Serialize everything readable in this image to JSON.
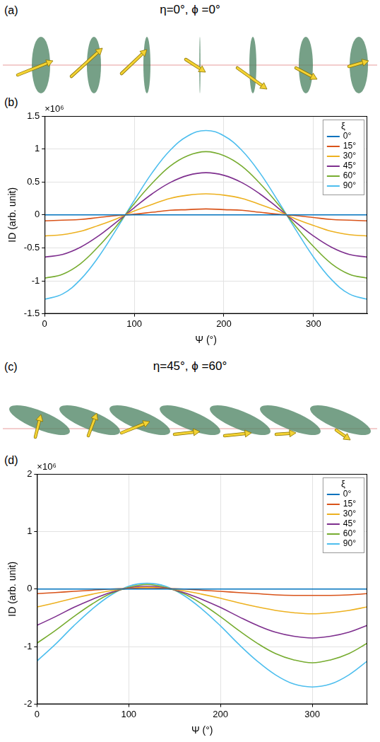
{
  "illustrations": [
    {
      "panel": "(a)",
      "title": "η=0°, ϕ =0°"
    },
    {
      "panel": "(c)",
      "title": "η=45°, ϕ =60°"
    }
  ],
  "chart_data": [
    {
      "type": "line",
      "panel": "(b)",
      "xlabel": "Ψ (°)",
      "ylabel": "ID (arb. unit)",
      "annotation": "×10⁶",
      "legend_title": "ξ",
      "legend": "upper right",
      "grid": true,
      "xlim": [
        0,
        360
      ],
      "xticks": [
        0,
        100,
        200,
        300
      ],
      "ylim": [
        -1.5,
        1.5
      ],
      "yticks": [
        -1.5,
        -1,
        -0.5,
        0,
        0.5,
        1,
        1.5
      ],
      "x": [
        0,
        20,
        40,
        60,
        80,
        100,
        120,
        140,
        160,
        180,
        200,
        220,
        240,
        260,
        280,
        300,
        320,
        340,
        360
      ],
      "series": [
        {
          "name": "0°",
          "color": "#0072BD",
          "values": [
            0,
            0,
            0,
            0,
            0,
            0,
            0,
            0,
            0,
            0,
            0,
            0,
            0,
            0,
            0,
            0,
            0,
            0,
            0
          ]
        },
        {
          "name": "15°",
          "color": "#D95319",
          "values": [
            -0.09,
            -0.08,
            -0.07,
            -0.04,
            -0.01,
            0.01,
            0.04,
            0.07,
            0.08,
            0.09,
            0.08,
            0.07,
            0.04,
            0.01,
            -0.01,
            -0.04,
            -0.07,
            -0.08,
            -0.09
          ]
        },
        {
          "name": "30°",
          "color": "#EDB120",
          "values": [
            -0.32,
            -0.3,
            -0.25,
            -0.16,
            -0.06,
            0.06,
            0.16,
            0.25,
            0.3,
            0.32,
            0.3,
            0.25,
            0.16,
            0.06,
            -0.06,
            -0.16,
            -0.25,
            -0.3,
            -0.32
          ]
        },
        {
          "name": "45°",
          "color": "#7E2F8E",
          "values": [
            -0.64,
            -0.6,
            -0.49,
            -0.32,
            -0.11,
            0.11,
            0.32,
            0.49,
            0.6,
            0.64,
            0.6,
            0.49,
            0.32,
            0.11,
            -0.11,
            -0.32,
            -0.49,
            -0.6,
            -0.64
          ]
        },
        {
          "name": "60°",
          "color": "#77AC30",
          "values": [
            -0.96,
            -0.9,
            -0.74,
            -0.48,
            -0.17,
            0.17,
            0.48,
            0.74,
            0.9,
            0.96,
            0.9,
            0.74,
            0.48,
            0.17,
            -0.17,
            -0.48,
            -0.74,
            -0.9,
            -0.96
          ]
        },
        {
          "name": "90°",
          "color": "#4DBEEE",
          "values": [
            -1.28,
            -1.2,
            -0.98,
            -0.64,
            -0.22,
            0.22,
            0.64,
            0.98,
            1.2,
            1.28,
            1.2,
            0.98,
            0.64,
            0.22,
            -0.22,
            -0.64,
            -0.98,
            -1.2,
            -1.28
          ]
        }
      ]
    },
    {
      "type": "line",
      "panel": "(d)",
      "xlabel": "Ψ (°)",
      "ylabel": "ID (arb. unit)",
      "annotation": "×10⁶",
      "legend_title": "ξ",
      "legend": "upper right",
      "grid": true,
      "xlim": [
        0,
        360
      ],
      "xticks": [
        0,
        100,
        200,
        300
      ],
      "ylim": [
        -2,
        2
      ],
      "yticks": [
        -2,
        -1,
        0,
        1,
        2
      ],
      "x": [
        0,
        20,
        40,
        60,
        80,
        100,
        120,
        140,
        160,
        180,
        200,
        220,
        240,
        260,
        280,
        300,
        320,
        340,
        360
      ],
      "series": [
        {
          "name": "0°",
          "color": "#0072BD",
          "values": [
            0,
            0,
            0,
            0,
            0,
            0,
            0,
            0,
            0,
            0,
            0,
            0,
            0,
            0,
            0,
            0,
            0,
            0,
            0
          ]
        },
        {
          "name": "15°",
          "color": "#D95319",
          "values": [
            -0.08,
            -0.06,
            -0.04,
            -0.02,
            0.0,
            0.01,
            0.01,
            0.01,
            0.0,
            -0.02,
            -0.04,
            -0.06,
            -0.08,
            -0.1,
            -0.11,
            -0.11,
            -0.11,
            -0.1,
            -0.08
          ]
        },
        {
          "name": "30°",
          "color": "#EDB120",
          "values": [
            -0.31,
            -0.24,
            -0.16,
            -0.09,
            -0.03,
            0.01,
            0.03,
            0.01,
            -0.03,
            -0.09,
            -0.16,
            -0.24,
            -0.31,
            -0.37,
            -0.41,
            -0.43,
            -0.41,
            -0.37,
            -0.31
          ]
        },
        {
          "name": "45°",
          "color": "#7E2F8E",
          "values": [
            -0.63,
            -0.48,
            -0.32,
            -0.18,
            -0.06,
            0.02,
            0.05,
            0.02,
            -0.06,
            -0.18,
            -0.32,
            -0.48,
            -0.63,
            -0.75,
            -0.82,
            -0.85,
            -0.82,
            -0.75,
            -0.63
          ]
        },
        {
          "name": "60°",
          "color": "#77AC30",
          "values": [
            -0.94,
            -0.72,
            -0.48,
            -0.26,
            -0.08,
            0.03,
            0.08,
            0.03,
            -0.08,
            -0.26,
            -0.48,
            -0.72,
            -0.94,
            -1.12,
            -1.23,
            -1.28,
            -1.23,
            -1.12,
            -0.94
          ]
        },
        {
          "name": "90°",
          "color": "#4DBEEE",
          "values": [
            -1.25,
            -0.96,
            -0.64,
            -0.35,
            -0.11,
            0.05,
            0.1,
            0.05,
            -0.11,
            -0.35,
            -0.64,
            -0.96,
            -1.25,
            -1.49,
            -1.65,
            -1.7,
            -1.65,
            -1.49,
            -1.25
          ]
        }
      ]
    }
  ]
}
